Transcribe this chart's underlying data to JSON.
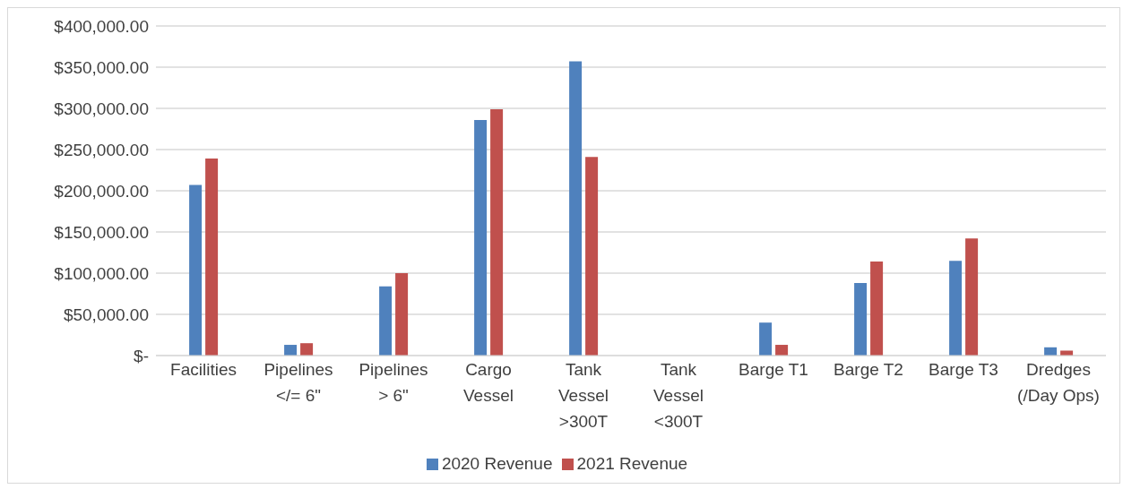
{
  "chart_data": {
    "type": "bar",
    "categories": [
      "Facilities",
      "Pipelines </= 6\"",
      "Pipelines > 6\"",
      "Cargo Vessel",
      "Tank Vessel >300T",
      "Tank Vessel <300T",
      "Barge T1",
      "Barge T2",
      "Barge T3",
      "Dredges (/Day Ops)"
    ],
    "series": [
      {
        "name": "2020 Revenue",
        "color": "#4f81bd",
        "values": [
          207000,
          13000,
          84000,
          286000,
          357000,
          0,
          40000,
          88000,
          115000,
          10000
        ]
      },
      {
        "name": "2021 Revenue",
        "color": "#c0504d",
        "values": [
          239000,
          15000,
          100000,
          299000,
          241000,
          0,
          13000,
          114000,
          142000,
          6000
        ]
      }
    ],
    "ylim": [
      0,
      400000
    ],
    "yticks": [
      {
        "value": 0,
        "label": "$-"
      },
      {
        "value": 50000,
        "label": "$50,000.00"
      },
      {
        "value": 100000,
        "label": "$100,000.00"
      },
      {
        "value": 150000,
        "label": "$150,000.00"
      },
      {
        "value": 200000,
        "label": "$200,000.00"
      },
      {
        "value": 250000,
        "label": "$250,000.00"
      },
      {
        "value": 300000,
        "label": "$300,000.00"
      },
      {
        "value": 350000,
        "label": "$350,000.00"
      },
      {
        "value": 400000,
        "label": "$400,000.00"
      }
    ],
    "grid": "y",
    "legend": "bottom"
  }
}
